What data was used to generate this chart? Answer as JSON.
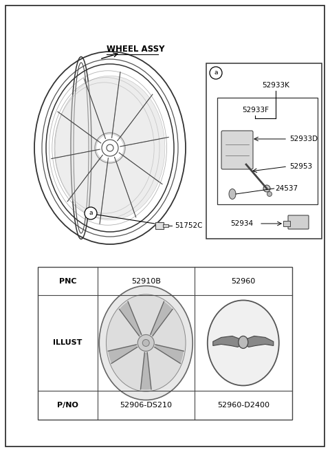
{
  "bg_color": "#ffffff",
  "wheel_label": "WHEEL ASSY",
  "sensor_part_52933K": "52933K",
  "sensor_part_52933F": "52933F",
  "sensor_part_52933D": "52933D",
  "sensor_part_52953": "52953",
  "sensor_part_24537": "24537",
  "sensor_part_52934": "52934",
  "bolt_label": "51752C",
  "table_pnc1": "52910B",
  "table_pnc2": "52960",
  "table_pno1": "52906-DS210",
  "table_pno2": "52960-D2400",
  "label_pnc": "PNC",
  "label_illust": "ILLUST",
  "label_pno": "P/NO"
}
